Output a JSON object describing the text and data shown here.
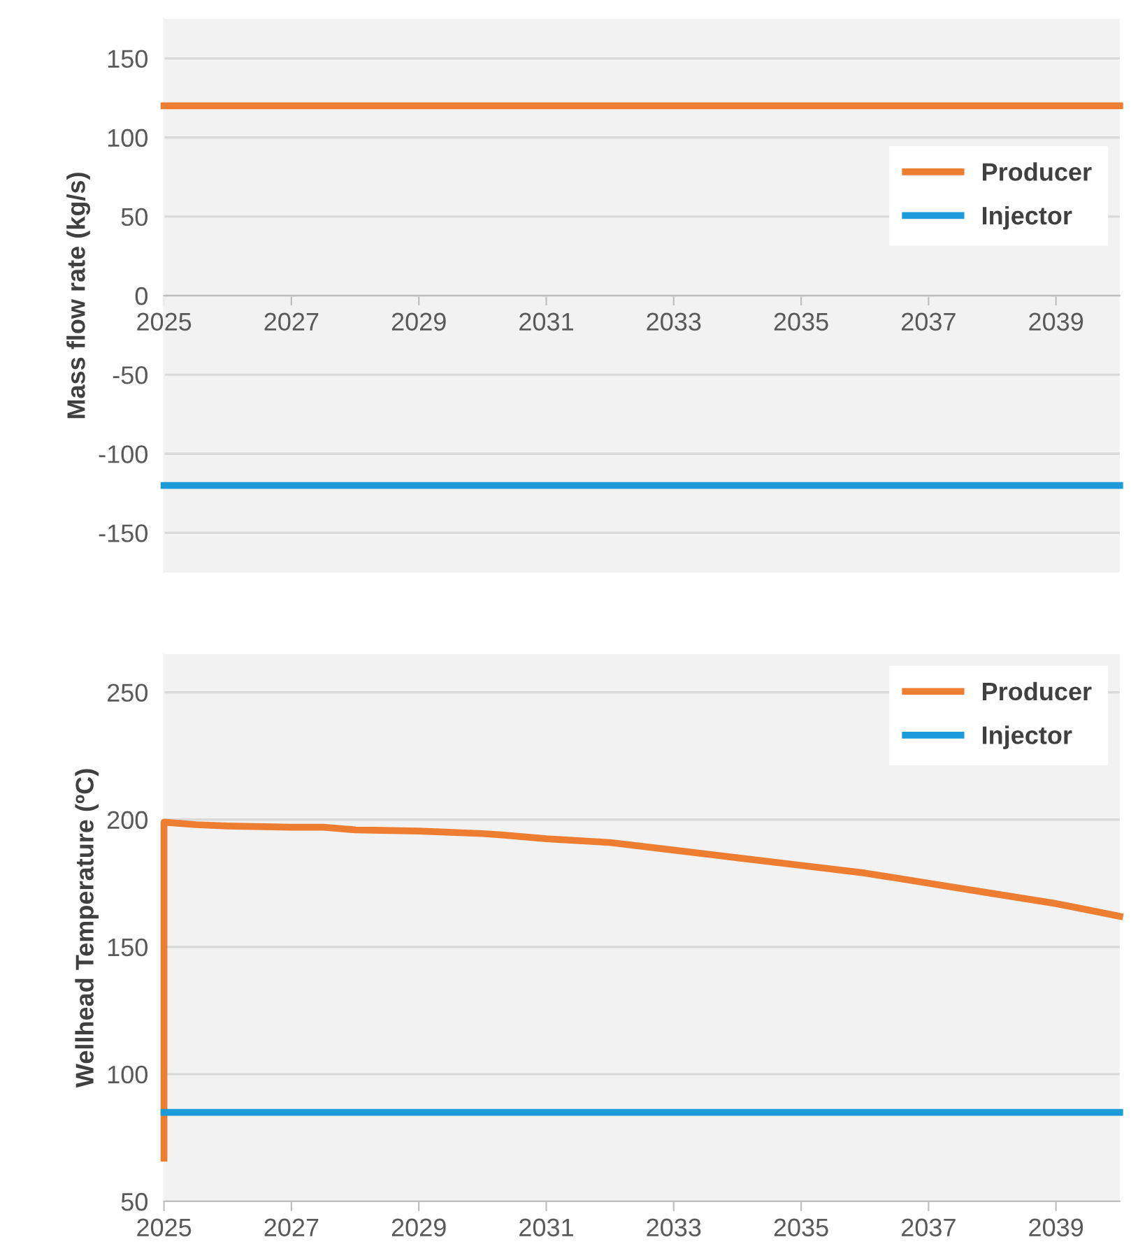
{
  "chart_data": [
    {
      "type": "line",
      "ylabel": "Mass flow rate (kg/s)",
      "xlim": [
        2025,
        2040
      ],
      "xticks": [
        2025,
        2027,
        2029,
        2031,
        2033,
        2035,
        2037,
        2039
      ],
      "ylim": [
        -175,
        175
      ],
      "yticks": [
        -150,
        -100,
        -50,
        0,
        50,
        100,
        150
      ],
      "grid": "y",
      "legend": "right",
      "line_style": "solid",
      "marker": "none",
      "series": [
        {
          "name": "Producer",
          "color": "#ed7d31",
          "x": [
            2025,
            2040
          ],
          "values": [
            120,
            120
          ]
        },
        {
          "name": "Injector",
          "color": "#1b9bd7",
          "x": [
            2025,
            2040
          ],
          "values": [
            -120,
            -120
          ]
        }
      ]
    },
    {
      "type": "line",
      "ylabel": "Wellhead Temperature (ºC)",
      "xlim": [
        2025,
        2040
      ],
      "xticks": [
        2025,
        2027,
        2029,
        2031,
        2033,
        2035,
        2037,
        2039
      ],
      "ylim": [
        50,
        265
      ],
      "yticks": [
        50,
        100,
        150,
        200,
        250
      ],
      "grid": "y",
      "legend": "top right",
      "line_style": "solid",
      "marker": "none",
      "series": [
        {
          "name": "Producer",
          "color": "#ed7d31",
          "x": [
            2025,
            2025,
            2025.5,
            2026,
            2027,
            2027.5,
            2028,
            2029,
            2030,
            2030.3,
            2031,
            2032,
            2033,
            2034,
            2035,
            2036,
            2037,
            2038,
            2039,
            2040
          ],
          "values": [
            67,
            199,
            198,
            197.5,
            197,
            197,
            196,
            195.5,
            194.5,
            194,
            192.5,
            191,
            188,
            185,
            182,
            179,
            175,
            171,
            167,
            162
          ]
        },
        {
          "name": "Injector",
          "color": "#1b9bd7",
          "x": [
            2025,
            2040
          ],
          "values": [
            85,
            85
          ]
        }
      ]
    }
  ]
}
